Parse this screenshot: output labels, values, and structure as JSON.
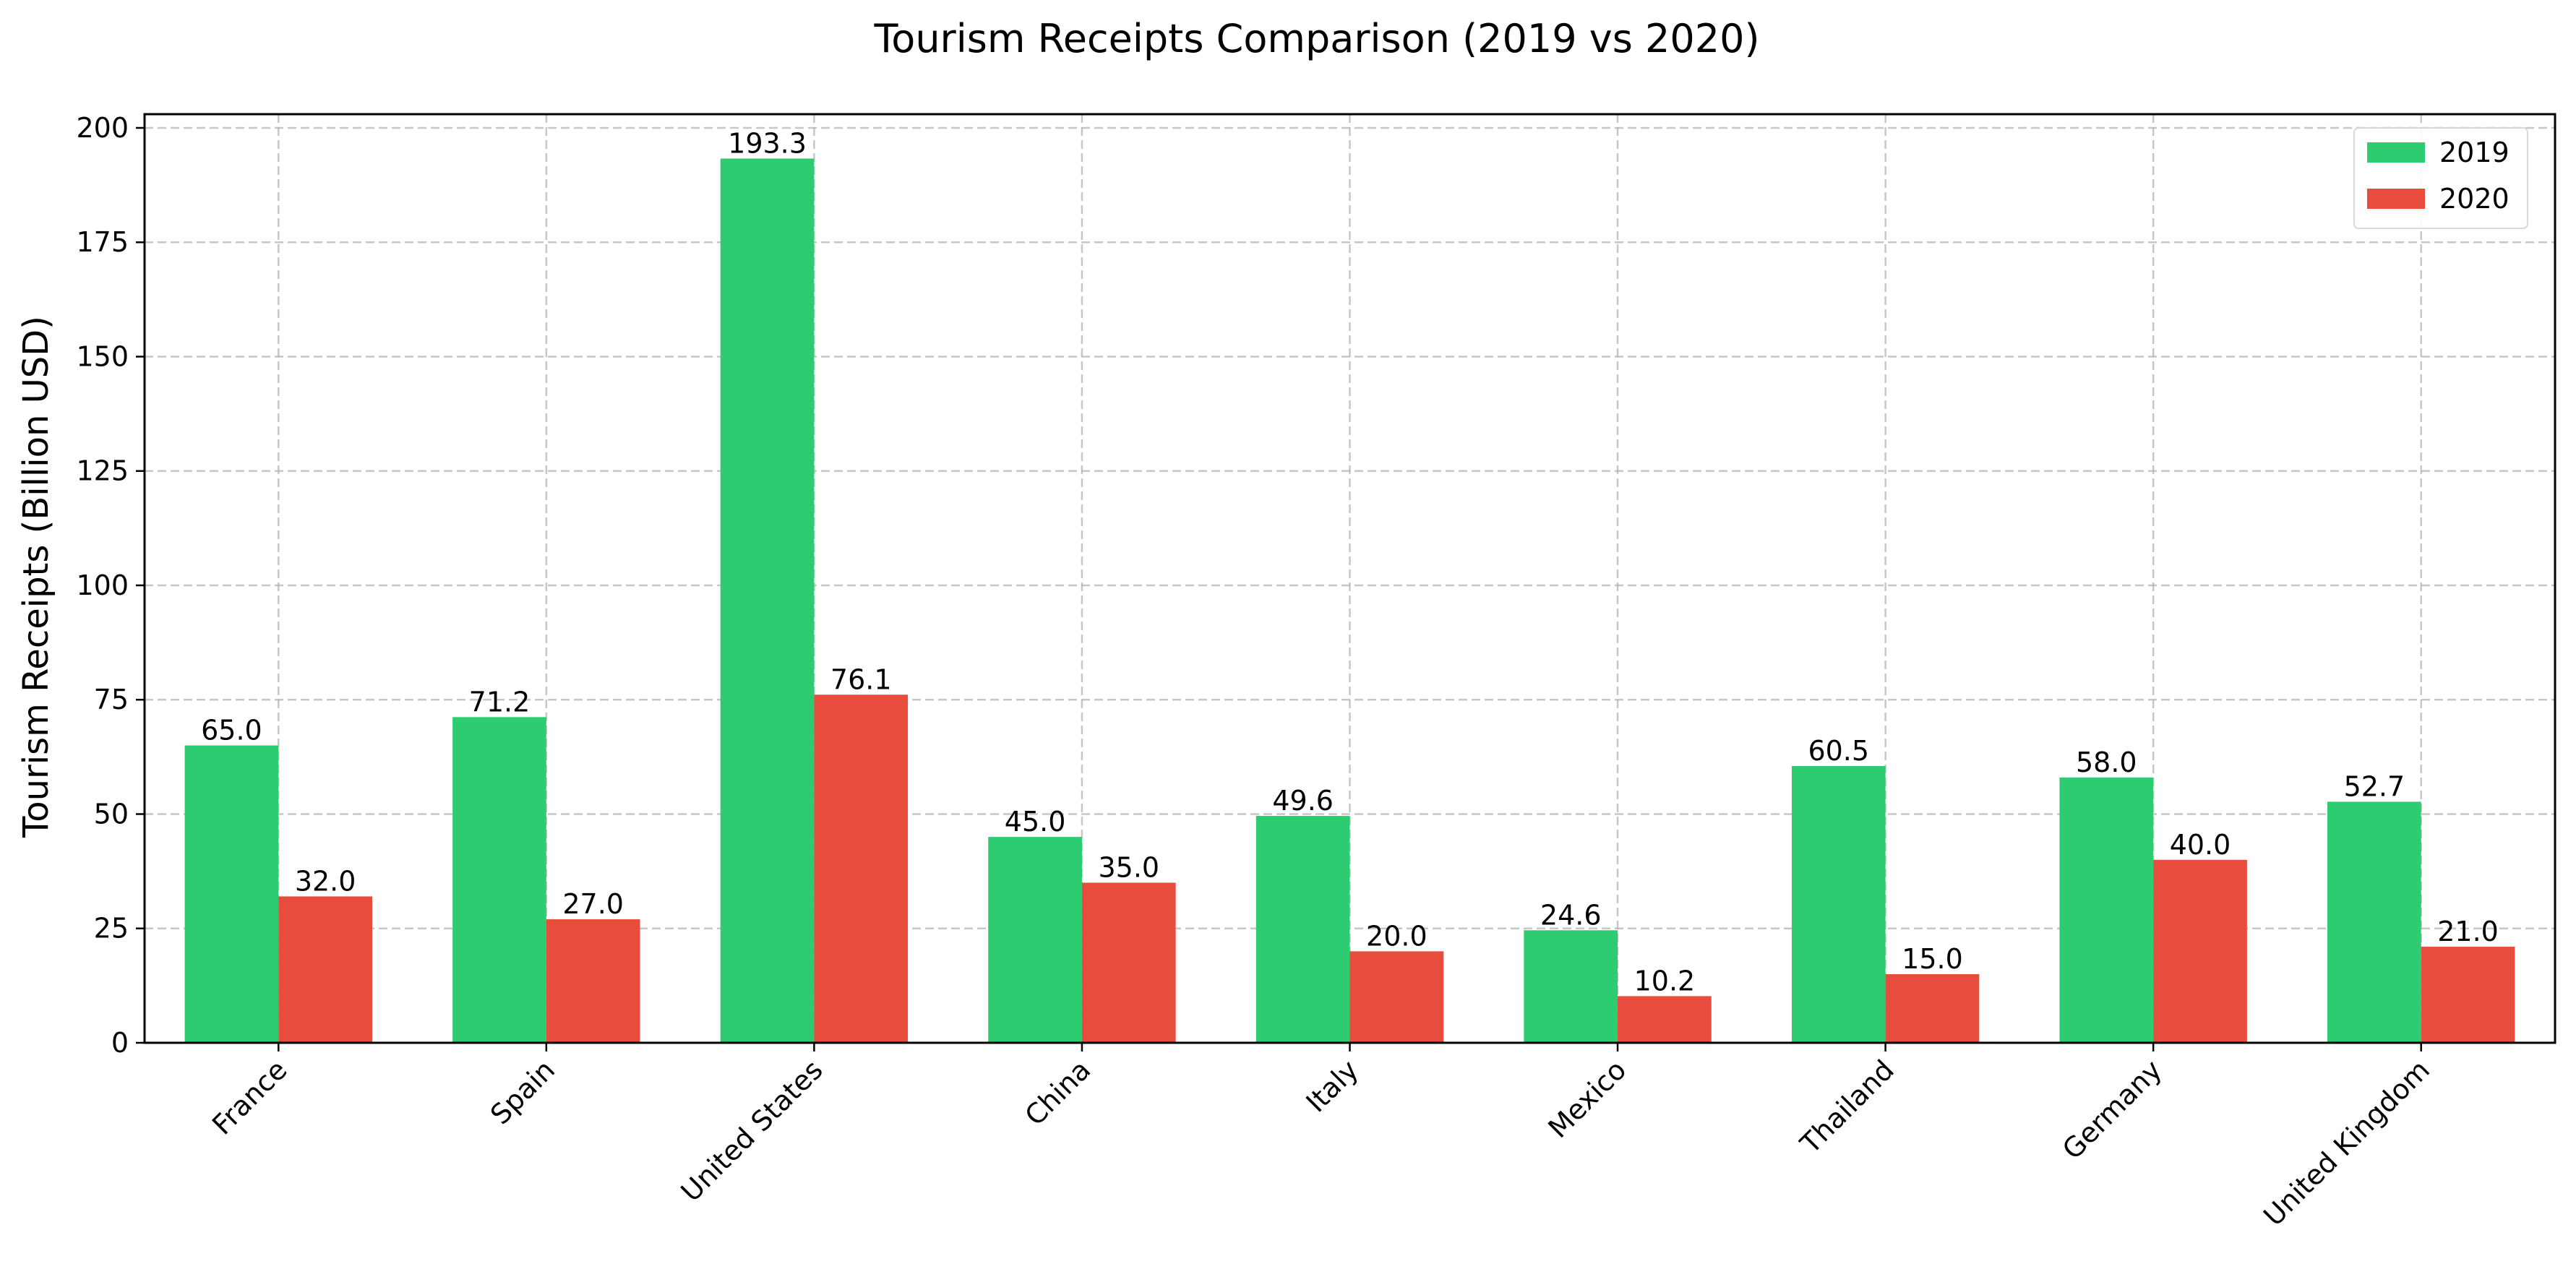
{
  "chart_data": {
    "type": "bar",
    "title": "Tourism Receipts Comparison (2019 vs 2020)",
    "xlabel": "",
    "ylabel": "Tourism Receipts (Billion USD)",
    "ylim": [
      0,
      203
    ],
    "yticks": [
      0,
      25,
      50,
      75,
      100,
      125,
      150,
      175,
      200
    ],
    "grid": true,
    "legend_position": "top-right",
    "categories": [
      "France",
      "Spain",
      "United States",
      "China",
      "Italy",
      "Mexico",
      "Thailand",
      "Germany",
      "United Kingdom"
    ],
    "series": [
      {
        "name": "2019",
        "color": "#2ecc71",
        "values": [
          65.0,
          71.2,
          193.3,
          45.0,
          49.6,
          24.6,
          60.5,
          58.0,
          52.7
        ]
      },
      {
        "name": "2020",
        "color": "#e74c3c",
        "values": [
          32.0,
          27.0,
          76.1,
          35.0,
          20.0,
          10.2,
          15.0,
          40.0,
          21.0
        ]
      }
    ],
    "value_labels": [
      [
        "65.0",
        "71.2",
        "193.3",
        "45.0",
        "49.6",
        "24.6",
        "60.5",
        "58.0",
        "52.7"
      ],
      [
        "32.0",
        "27.0",
        "76.1",
        "35.0",
        "20.0",
        "10.2",
        "15.0",
        "40.0",
        "21.0"
      ]
    ]
  }
}
